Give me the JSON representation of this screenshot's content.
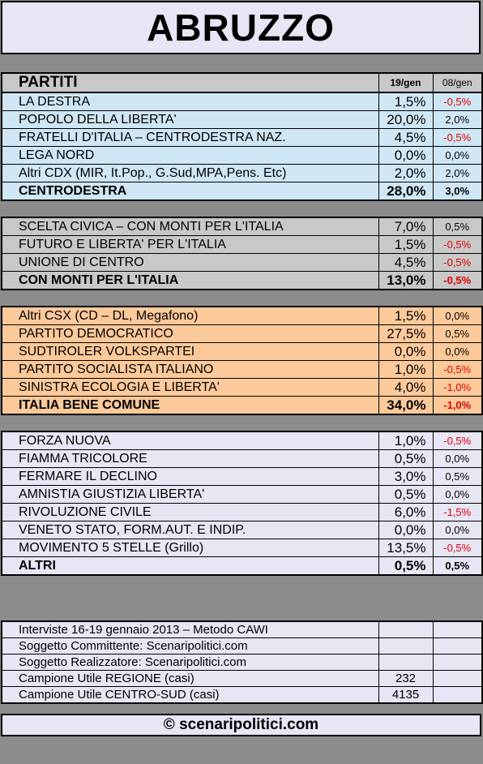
{
  "title": "ABRUZZO",
  "header": {
    "col1": "PARTITI",
    "col2": "19/gen",
    "col3": "08/gen"
  },
  "groups": [
    {
      "rows": [
        {
          "name": "LA DESTRA",
          "value": "1,5%",
          "delta": "-0,5%"
        },
        {
          "name": "POPOLO DELLA LIBERTA'",
          "value": "20,0%",
          "delta": "2,0%"
        },
        {
          "name": "FRATELLI D'ITALIA – CENTRODESTRA NAZ.",
          "value": "4,5%",
          "delta": "-0,5%"
        },
        {
          "name": "LEGA NORD",
          "value": "0,0%",
          "delta": "0,0%"
        },
        {
          "name": "Altri CDX (MIR, It.Pop., G.Sud,MPA,Pens. Etc)",
          "value": "2,0%",
          "delta": "2,0%"
        },
        {
          "name": "CENTRODESTRA",
          "value": "28,0%",
          "delta": "3,0%"
        }
      ]
    },
    {
      "rows": [
        {
          "name": "SCELTA CIVICA – CON MONTI PER L'ITALIA",
          "value": "7,0%",
          "delta": "0,5%"
        },
        {
          "name": "FUTURO E LIBERTA' PER L'ITALIA",
          "value": "1,5%",
          "delta": "-0,5%"
        },
        {
          "name": "UNIONE DI CENTRO",
          "value": "4,5%",
          "delta": "-0,5%"
        },
        {
          "name": "CON MONTI PER L'ITALIA",
          "value": "13,0%",
          "delta": "-0,5%"
        }
      ]
    },
    {
      "rows": [
        {
          "name": "Altri CSX (CD – DL, Megafono)",
          "value": "1,5%",
          "delta": "0,0%"
        },
        {
          "name": "PARTITO DEMOCRATICO",
          "value": "27,5%",
          "delta": "0,5%"
        },
        {
          "name": "SUDTIROLER VOLKSPARTEI",
          "value": "0,0%",
          "delta": "0,0%"
        },
        {
          "name": "PARTITO SOCIALISTA ITALIANO",
          "value": "1,0%",
          "delta": "-0,5%"
        },
        {
          "name": "SINISTRA ECOLOGIA E LIBERTA'",
          "value": "4,0%",
          "delta": "-1,0%"
        },
        {
          "name": "ITALIA BENE COMUNE",
          "value": "34,0%",
          "delta": "-1,0%"
        }
      ]
    },
    {
      "rows": [
        {
          "name": "FORZA NUOVA",
          "value": "1,0%",
          "delta": "-0,5%"
        },
        {
          "name": "FIAMMA TRICOLORE",
          "value": "0,5%",
          "delta": "0,0%"
        },
        {
          "name": "FERMARE IL DECLINO",
          "value": "3,0%",
          "delta": "0,5%"
        },
        {
          "name": "AMNISTIA GIUSTIZIA LIBERTA'",
          "value": "0,5%",
          "delta": "0,0%"
        },
        {
          "name": "RIVOLUZIONE CIVILE",
          "value": "6,0%",
          "delta": "-1,5%"
        },
        {
          "name": "VENETO STATO, FORM.AUT. E INDIP.",
          "value": "0,0%",
          "delta": "0,0%"
        },
        {
          "name": "MOVIMENTO 5 STELLE (Grillo)",
          "value": "13,5%",
          "delta": "-0,5%"
        },
        {
          "name": "ALTRI",
          "value": "0,5%",
          "delta": "0,5%"
        }
      ]
    }
  ],
  "info": [
    {
      "label": "Interviste 16-19 gennaio 2013 – Metodo CAWI",
      "value": ""
    },
    {
      "label": "Soggetto Committente: Scenaripolitici.com",
      "value": ""
    },
    {
      "label": "Soggetto Realizzatore: Scenaripolitici.com",
      "value": ""
    },
    {
      "label": "Campione Utile REGIONE (casi)",
      "value": "232"
    },
    {
      "label": "Campione Utile CENTRO-SUD (casi)",
      "value": "4135"
    }
  ],
  "footer": "© scenaripolitici.com"
}
